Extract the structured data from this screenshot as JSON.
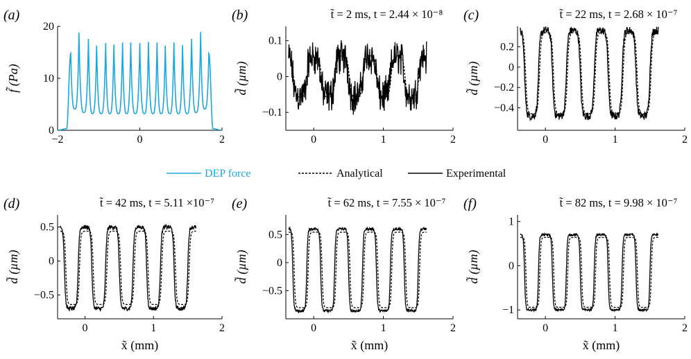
{
  "legend": [
    {
      "label": "DEP force",
      "color": "#1aa7e0",
      "style": "solid"
    },
    {
      "label": "Analytical",
      "color": "#000000",
      "style": "dashed"
    },
    {
      "label": "Experimental",
      "color": "#000000",
      "style": "solid"
    }
  ],
  "chart_data": [
    {
      "id": "a",
      "type": "line",
      "panel_label": "(a)",
      "title": "",
      "ylabel": "f̃ (Pa)",
      "xlabel": "",
      "xlim": [
        -2,
        2
      ],
      "ylim": [
        0,
        20
      ],
      "xticks": [
        -2,
        0,
        2
      ],
      "yticks": [
        0,
        10,
        20
      ],
      "xtick_labels": [
        "−2",
        "0",
        "2"
      ],
      "ytick_labels": [
        "0",
        "10",
        "20"
      ],
      "series": [
        {
          "name": "DEP force",
          "style": "dep",
          "color": "#1aa7e0",
          "peaks": [
            {
              "x": -1.68,
              "y": 14.8
            },
            {
              "x": -1.48,
              "y": 18.8
            },
            {
              "x": -1.25,
              "y": 17.6
            },
            {
              "x": -1.05,
              "y": 16.3
            },
            {
              "x": -0.83,
              "y": 16.8
            },
            {
              "x": -0.63,
              "y": 16.5
            },
            {
              "x": -0.42,
              "y": 16.9
            },
            {
              "x": -0.22,
              "y": 16.9
            },
            {
              "x": 0.0,
              "y": 16.8
            },
            {
              "x": 0.21,
              "y": 17.0
            },
            {
              "x": 0.42,
              "y": 16.9
            },
            {
              "x": 0.62,
              "y": 16.3
            },
            {
              "x": 0.83,
              "y": 16.9
            },
            {
              "x": 1.04,
              "y": 16.4
            },
            {
              "x": 1.26,
              "y": 17.6
            },
            {
              "x": 1.48,
              "y": 18.9
            },
            {
              "x": 1.68,
              "y": 14.8
            }
          ],
          "valleys": [
            {
              "x": -1.58,
              "y": 4.1
            },
            {
              "x": -1.36,
              "y": 3.4
            },
            {
              "x": -1.15,
              "y": 3.2
            },
            {
              "x": -0.94,
              "y": 3.2
            },
            {
              "x": -0.73,
              "y": 3.2
            },
            {
              "x": -0.52,
              "y": 3.2
            },
            {
              "x": -0.32,
              "y": 3.2
            },
            {
              "x": -0.11,
              "y": 3.2
            },
            {
              "x": 0.11,
              "y": 3.2
            },
            {
              "x": 0.32,
              "y": 3.2
            },
            {
              "x": 0.52,
              "y": 3.2
            },
            {
              "x": 0.73,
              "y": 3.2
            },
            {
              "x": 0.94,
              "y": 3.2
            },
            {
              "x": 1.15,
              "y": 3.2
            },
            {
              "x": 1.37,
              "y": 3.4
            },
            {
              "x": 1.58,
              "y": 4.1
            }
          ],
          "edge_start": -1.78,
          "edge_end": 1.78
        }
      ]
    },
    {
      "id": "b",
      "type": "line",
      "panel_label": "(b)",
      "title": "t̃ = 2 ms, t = 2.44 × 10⁻⁸",
      "ylabel": "d̃ (µm)",
      "xlabel": "",
      "xlim": [
        -0.4,
        2
      ],
      "ylim": [
        -0.15,
        0.14
      ],
      "xticks": [
        0,
        1,
        2
      ],
      "yticks": [
        -0.1,
        0,
        0.1
      ],
      "xtick_labels": [
        "0",
        "1",
        "2"
      ],
      "ytick_labels": [
        "−0.1",
        "0",
        "0.1"
      ],
      "wave": {
        "x_start": -0.36,
        "x_end": 1.62,
        "period": 0.4,
        "phase": 0.0,
        "amp": 0.055,
        "sharp": 0.35,
        "noise": 0.03,
        "ana_lag": 0.01,
        "ana_scale": 1.05
      },
      "series": [
        {
          "name": "Analytical",
          "style": "dashed",
          "color": "#000000"
        },
        {
          "name": "Experimental",
          "style": "solid",
          "color": "#000000"
        }
      ]
    },
    {
      "id": "c",
      "type": "line",
      "panel_label": "(c)",
      "title": "t̃ = 22 ms, t = 2.68 × 10⁻⁷",
      "ylabel": "d̃ (µm)",
      "xlabel": "",
      "xlim": [
        -0.4,
        2
      ],
      "ylim": [
        -0.62,
        0.4
      ],
      "xticks": [
        0,
        1,
        2
      ],
      "yticks": [
        -0.4,
        -0.2,
        0,
        0.2
      ],
      "xtick_labels": [
        "0",
        "1",
        "2"
      ],
      "ytick_labels": [
        "−0.4",
        "−0.2",
        "0",
        "0.2"
      ],
      "wave": {
        "x_start": -0.36,
        "x_end": 1.62,
        "period": 0.4,
        "phase": 0.0,
        "amp": 0.42,
        "offset": -0.06,
        "sharp": 0.55,
        "noise": 0.04,
        "ana_lag": 0.015,
        "ana_scale": 0.95
      },
      "series": [
        {
          "name": "Analytical",
          "style": "dashed",
          "color": "#000000"
        },
        {
          "name": "Experimental",
          "style": "solid",
          "color": "#000000"
        }
      ]
    },
    {
      "id": "d",
      "type": "line",
      "panel_label": "(d)",
      "title": "t̃ = 42 ms, t = 5.11 ×10⁻⁷",
      "ylabel": "d̃ (µm)",
      "xlabel": "x̃ (mm)",
      "xlim": [
        -0.4,
        2
      ],
      "ylim": [
        -0.85,
        0.68
      ],
      "xticks": [
        0,
        1,
        2
      ],
      "yticks": [
        -0.5,
        0,
        0.5
      ],
      "xtick_labels": [
        "0",
        "1",
        "2"
      ],
      "ytick_labels": [
        "−0.5",
        "0",
        "0.5"
      ],
      "wave": {
        "x_start": -0.36,
        "x_end": 1.62,
        "period": 0.4,
        "phase": 0.0,
        "amp": 0.6,
        "offset": -0.1,
        "sharp": 0.8,
        "noise": 0.03,
        "ana_lag": 0.02,
        "ana_scale": 0.9
      },
      "series": [
        {
          "name": "Analytical",
          "style": "dashed",
          "color": "#000000"
        },
        {
          "name": "Experimental",
          "style": "solid",
          "color": "#000000"
        }
      ]
    },
    {
      "id": "e",
      "type": "line",
      "panel_label": "(e)",
      "title": "t̃ = 62 ms, t = 7.55 × 10⁻⁷",
      "ylabel": "d̃ (µm)",
      "xlabel": "x̃ (mm)",
      "xlim": [
        -0.4,
        2
      ],
      "ylim": [
        -1.0,
        0.85
      ],
      "xticks": [
        0,
        1,
        2
      ],
      "yticks": [
        -0.5,
        0,
        0.5
      ],
      "xtick_labels": [
        "0",
        "1",
        "2"
      ],
      "ytick_labels": [
        "−0.5",
        "0",
        "0.5"
      ],
      "wave": {
        "x_start": -0.36,
        "x_end": 1.62,
        "period": 0.4,
        "phase": 0.0,
        "amp": 0.73,
        "offset": -0.13,
        "sharp": 1.0,
        "noise": 0.025,
        "ana_lag": 0.02,
        "ana_scale": 0.92
      },
      "series": [
        {
          "name": "Analytical",
          "style": "dashed",
          "color": "#000000"
        },
        {
          "name": "Experimental",
          "style": "solid",
          "color": "#000000"
        }
      ]
    },
    {
      "id": "f",
      "type": "line",
      "panel_label": "(f)",
      "title": "t̃ = 82 ms, t = 9.98 × 10⁻⁷",
      "ylabel": "d̃ (µm)",
      "xlabel": "x̃ (mm)",
      "xlim": [
        -0.4,
        2
      ],
      "ylim": [
        -1.2,
        1.15
      ],
      "xticks": [
        0,
        1,
        2
      ],
      "yticks": [
        -1,
        0,
        1
      ],
      "xtick_labels": [
        "0",
        "1",
        "2"
      ],
      "ytick_labels": [
        "−1",
        "0",
        "1"
      ],
      "wave": {
        "x_start": -0.36,
        "x_end": 1.62,
        "period": 0.4,
        "phase": 0.0,
        "amp": 0.85,
        "offset": -0.15,
        "sharp": 1.1,
        "noise": 0.025,
        "ana_lag": 0.02,
        "ana_scale": 0.93
      },
      "series": [
        {
          "name": "Analytical",
          "style": "dashed",
          "color": "#000000"
        },
        {
          "name": "Experimental",
          "style": "solid",
          "color": "#000000"
        }
      ]
    }
  ]
}
